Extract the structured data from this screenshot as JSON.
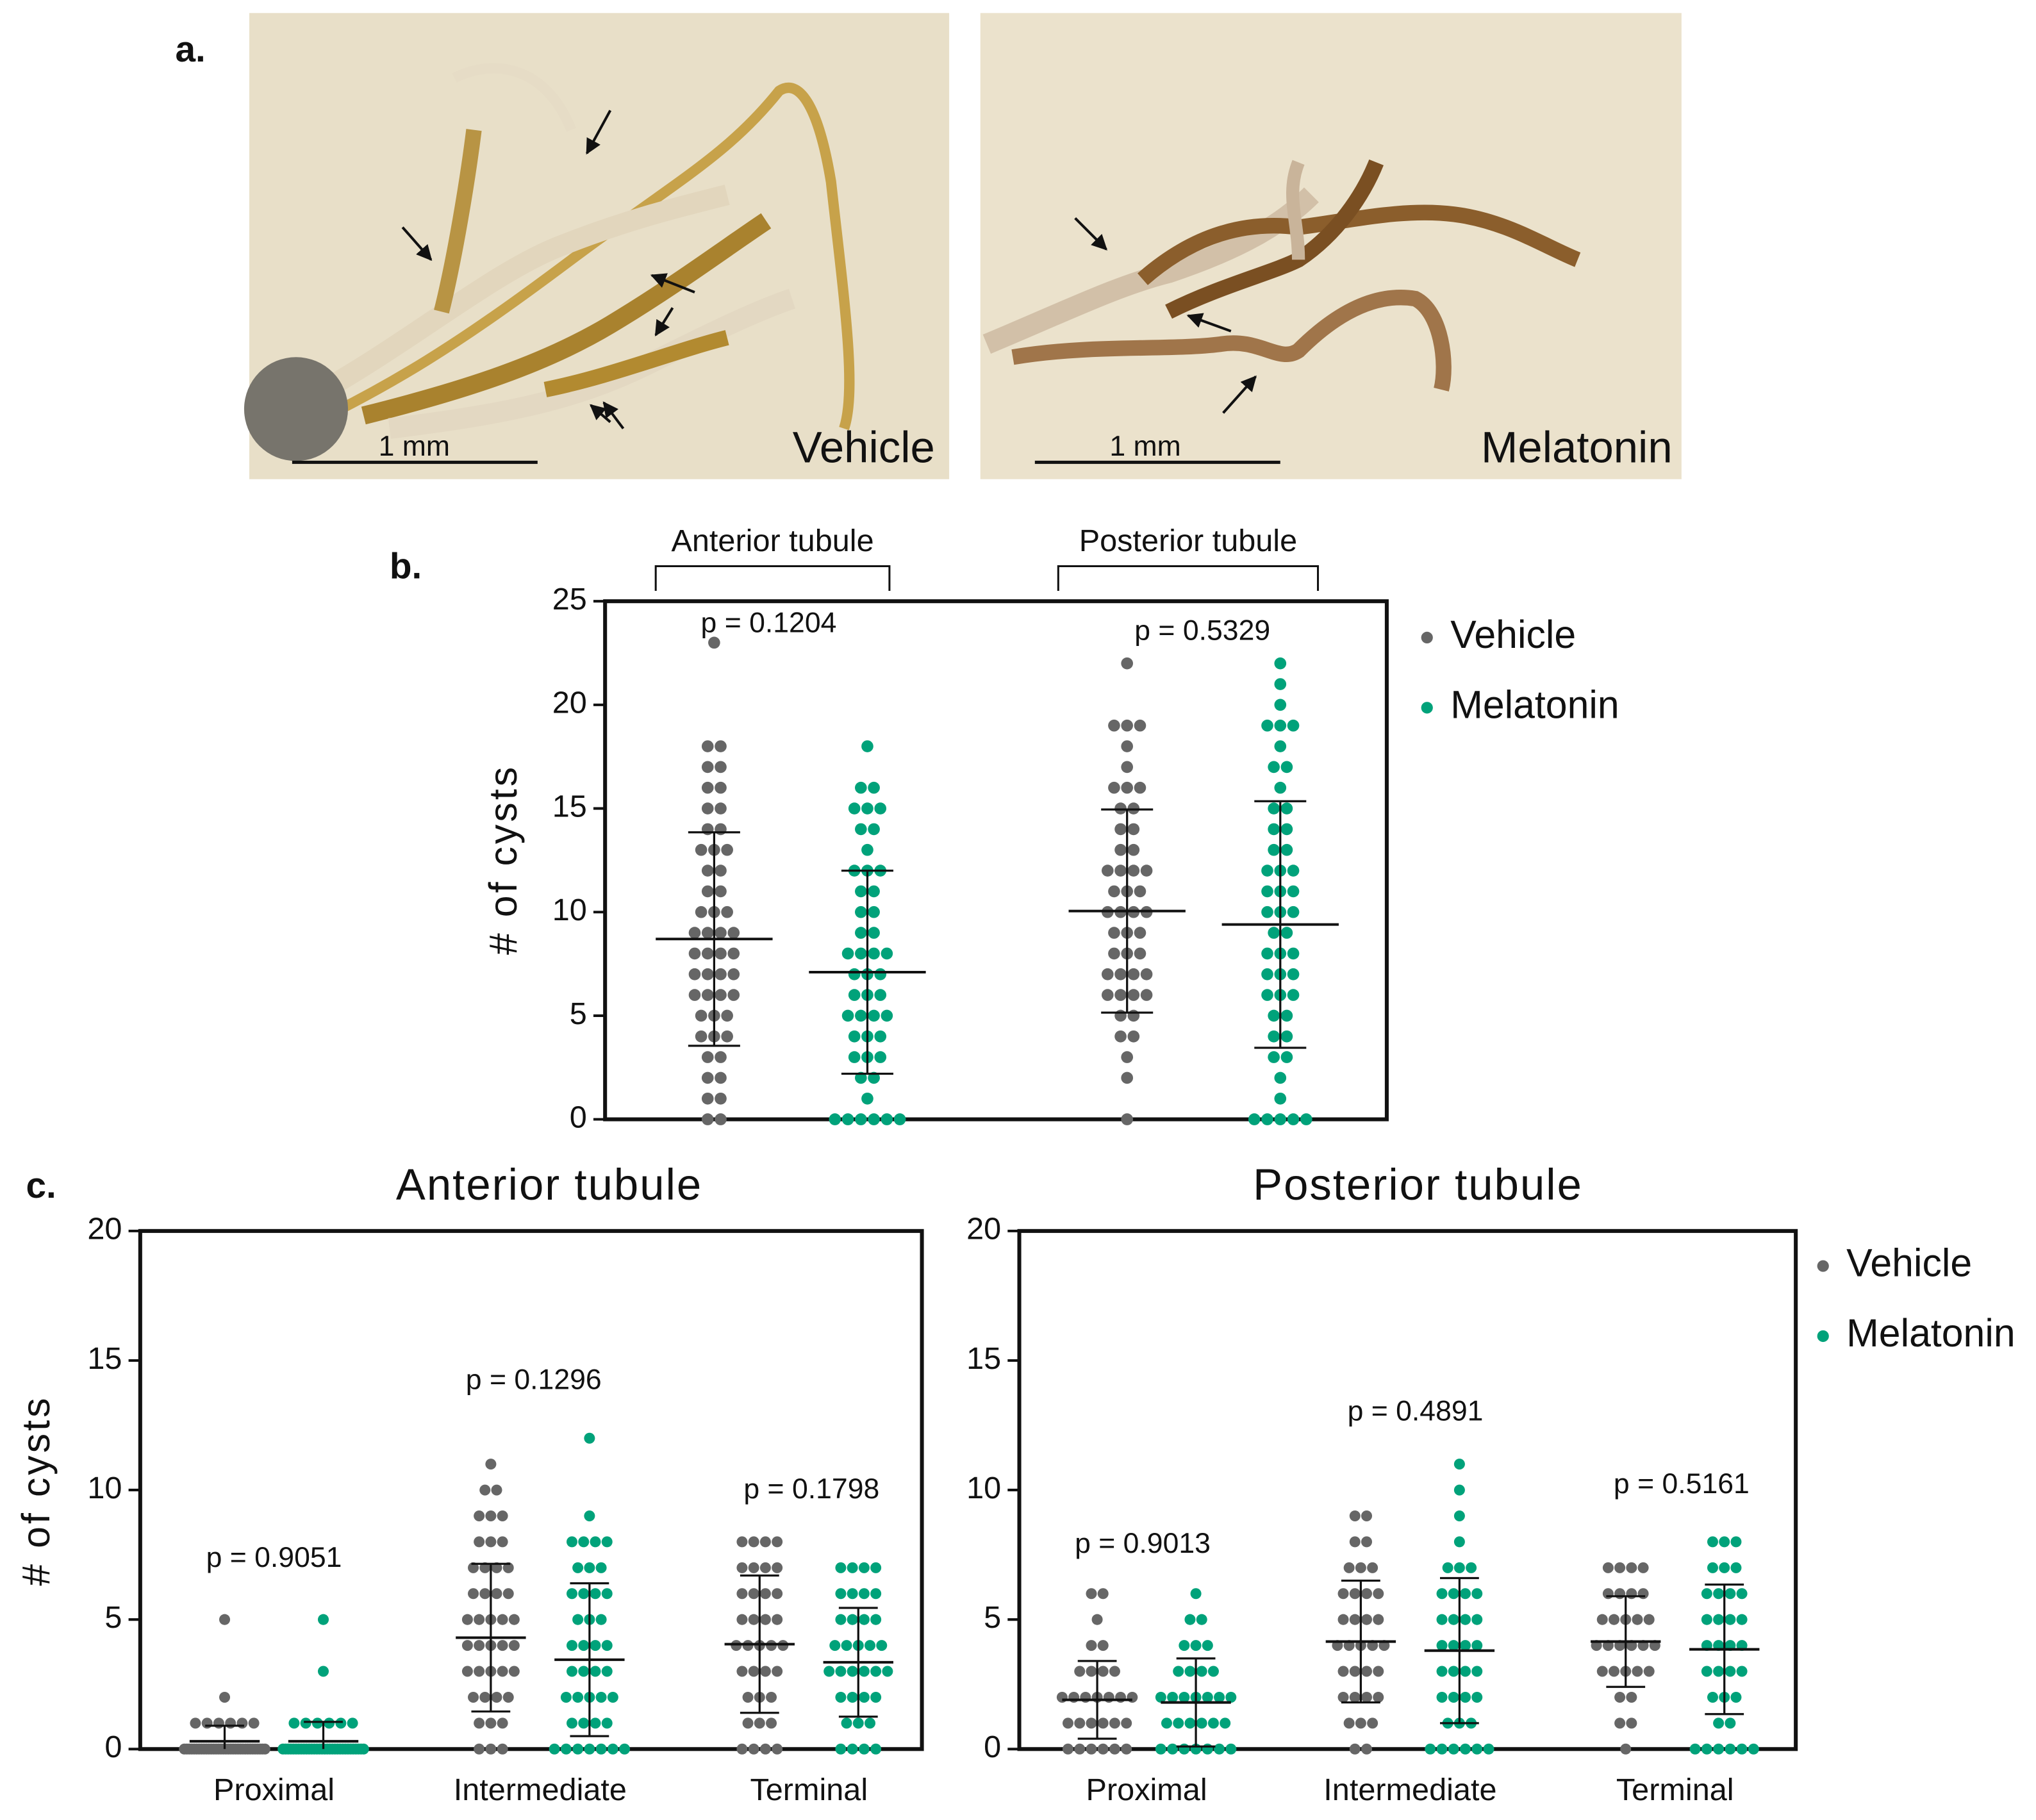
{
  "panel_labels": [
    "a.",
    "b.",
    "c."
  ],
  "images": [
    {
      "label": "Vehicle",
      "scale_bar": "1 mm"
    },
    {
      "label": "Melatonin",
      "scale_bar": "1 mm"
    }
  ],
  "chart_data": [
    {
      "type": "dot",
      "y_label": "# of cysts",
      "categories": [
        "Anterior tubule",
        "Posterior tubule"
      ],
      "annotations": [
        "p = 0.1204",
        "p = 0.5329"
      ],
      "ylim": [
        0,
        25
      ],
      "yticks": [
        0,
        5,
        10,
        15,
        20,
        25
      ],
      "legend": true,
      "series": [
        {
          "name": "Vehicle",
          "color": "#666666",
          "mean": [
            8.7,
            10.05
          ],
          "sd": [
            5.15,
            4.9
          ],
          "values": [
            [
              23,
              18,
              18,
              17,
              17,
              16,
              16,
              15,
              15,
              14,
              14,
              13,
              13,
              13,
              12,
              12,
              11,
              11,
              10,
              10,
              10,
              9,
              9,
              9,
              9,
              8,
              8,
              8,
              8,
              7,
              7,
              7,
              7,
              6,
              6,
              6,
              6,
              5,
              5,
              5,
              4,
              4,
              4,
              3,
              3,
              2,
              2,
              1,
              1,
              0,
              0
            ],
            [
              22,
              19,
              19,
              19,
              18,
              17,
              16,
              16,
              16,
              15,
              15,
              14,
              14,
              13,
              13,
              12,
              12,
              12,
              12,
              11,
              11,
              11,
              10,
              10,
              10,
              10,
              9,
              9,
              9,
              8,
              8,
              8,
              7,
              7,
              7,
              7,
              6,
              6,
              6,
              6,
              5,
              5,
              4,
              4,
              3,
              2,
              0
            ]
          ]
        },
        {
          "name": "Melatonin",
          "color": "#00a27a",
          "mean": [
            7.1,
            9.4
          ],
          "sd": [
            4.9,
            5.95
          ],
          "values": [
            [
              18,
              16,
              16,
              15,
              15,
              15,
              14,
              14,
              13,
              12,
              12,
              12,
              11,
              11,
              10,
              10,
              9,
              9,
              8,
              8,
              8,
              8,
              7,
              7,
              7,
              6,
              6,
              6,
              5,
              5,
              5,
              5,
              4,
              4,
              4,
              3,
              3,
              3,
              2,
              2,
              1,
              0,
              0,
              0,
              0,
              0,
              0
            ],
            [
              22,
              21,
              20,
              19,
              19,
              19,
              18,
              17,
              17,
              16,
              15,
              15,
              14,
              14,
              13,
              13,
              12,
              12,
              12,
              11,
              11,
              11,
              10,
              10,
              10,
              9,
              9,
              8,
              8,
              8,
              7,
              7,
              7,
              6,
              6,
              6,
              5,
              5,
              4,
              4,
              3,
              3,
              2,
              1,
              0,
              0,
              0,
              0,
              0
            ]
          ]
        }
      ]
    },
    {
      "type": "dot",
      "title": "Anterior tubule",
      "y_label": "# of cysts",
      "categories": [
        "Proximal",
        "Intermediate",
        "Terminal"
      ],
      "annotations": [
        "p = 0.9051",
        "p = 0.1296",
        "p = 0.1798"
      ],
      "ylim": [
        0,
        20
      ],
      "yticks": [
        0,
        5,
        10,
        15,
        20
      ],
      "legend": false,
      "series": [
        {
          "name": "Vehicle",
          "color": "#666666",
          "mean": [
            0.3,
            4.3,
            4.05
          ],
          "sd": [
            0.6,
            2.85,
            2.65
          ],
          "values": [
            [
              5,
              2,
              1,
              1,
              1,
              1,
              1,
              1,
              0,
              0,
              0,
              0,
              0,
              0,
              0,
              0,
              0,
              0,
              0,
              0,
              0,
              0,
              0,
              0,
              0,
              0,
              0,
              0,
              0,
              0,
              0,
              0,
              0,
              0,
              0,
              0,
              0,
              0,
              0,
              0,
              0,
              0
            ],
            [
              11,
              10,
              10,
              9,
              9,
              9,
              8,
              8,
              8,
              7,
              7,
              7,
              7,
              6,
              6,
              6,
              6,
              5,
              5,
              5,
              5,
              5,
              4,
              4,
              4,
              4,
              4,
              3,
              3,
              3,
              3,
              3,
              2,
              2,
              2,
              2,
              1,
              1,
              1,
              0,
              0,
              0
            ],
            [
              8,
              8,
              8,
              8,
              7,
              7,
              7,
              7,
              6,
              6,
              6,
              6,
              5,
              5,
              5,
              5,
              4,
              4,
              4,
              4,
              4,
              3,
              3,
              3,
              3,
              2,
              2,
              2,
              1,
              1,
              1,
              0,
              0,
              0,
              0
            ]
          ]
        },
        {
          "name": "Melatonin",
          "color": "#00a27a",
          "mean": [
            0.3,
            3.45,
            3.35
          ],
          "sd": [
            0.75,
            2.95,
            2.1
          ],
          "values": [
            [
              5,
              3,
              1,
              1,
              1,
              1,
              1,
              1,
              0,
              0,
              0,
              0,
              0,
              0,
              0,
              0,
              0,
              0,
              0,
              0,
              0,
              0,
              0,
              0,
              0,
              0,
              0,
              0,
              0,
              0,
              0,
              0,
              0,
              0,
              0,
              0,
              0,
              0,
              0,
              0
            ],
            [
              12,
              9,
              8,
              8,
              8,
              8,
              7,
              7,
              7,
              6,
              6,
              6,
              6,
              5,
              5,
              5,
              4,
              4,
              4,
              4,
              3,
              3,
              3,
              3,
              2,
              2,
              2,
              2,
              2,
              1,
              1,
              1,
              1,
              0,
              0,
              0,
              0,
              0,
              0,
              0
            ],
            [
              7,
              7,
              7,
              7,
              6,
              6,
              6,
              6,
              5,
              5,
              5,
              5,
              4,
              4,
              4,
              4,
              4,
              3,
              3,
              3,
              3,
              3,
              3,
              2,
              2,
              2,
              2,
              1,
              1,
              1,
              0,
              0,
              0,
              0
            ]
          ]
        }
      ]
    },
    {
      "type": "dot",
      "title": "Posterior tubule",
      "categories": [
        "Proximal",
        "Intermediate",
        "Terminal"
      ],
      "annotations": [
        "p = 0.9013",
        "p = 0.4891",
        "p = 0.5161"
      ],
      "ylim": [
        0,
        20
      ],
      "yticks": [
        0,
        5,
        10,
        15,
        20
      ],
      "legend": true,
      "series": [
        {
          "name": "Vehicle",
          "color": "#666666",
          "mean": [
            1.9,
            4.15,
            4.15
          ],
          "sd": [
            1.5,
            2.35,
            1.75
          ],
          "values": [
            [
              6,
              6,
              5,
              4,
              4,
              3,
              3,
              3,
              3,
              2,
              2,
              2,
              2,
              2,
              2,
              2,
              1,
              1,
              1,
              1,
              1,
              1,
              0,
              0,
              0,
              0,
              0,
              0
            ],
            [
              9,
              9,
              8,
              8,
              7,
              7,
              7,
              6,
              6,
              6,
              6,
              5,
              5,
              5,
              5,
              4,
              4,
              4,
              4,
              4,
              3,
              3,
              3,
              3,
              2,
              2,
              2,
              2,
              1,
              1,
              1,
              0,
              0
            ],
            [
              7,
              7,
              7,
              7,
              6,
              6,
              6,
              6,
              5,
              5,
              5,
              5,
              5,
              4,
              4,
              4,
              4,
              4,
              4,
              3,
              3,
              3,
              3,
              3,
              2,
              2,
              1,
              1,
              0
            ]
          ]
        },
        {
          "name": "Melatonin",
          "color": "#00a27a",
          "mean": [
            1.8,
            3.8,
            3.85
          ],
          "sd": [
            1.7,
            2.8,
            2.5
          ],
          "values": [
            [
              6,
              5,
              5,
              4,
              4,
              4,
              3,
              3,
              3,
              3,
              2,
              2,
              2,
              2,
              2,
              2,
              2,
              1,
              1,
              1,
              1,
              1,
              1,
              0,
              0,
              0,
              0,
              0,
              0,
              0
            ],
            [
              11,
              10,
              9,
              8,
              7,
              7,
              7,
              6,
              6,
              6,
              6,
              5,
              5,
              5,
              5,
              4,
              4,
              4,
              4,
              3,
              3,
              3,
              3,
              2,
              2,
              2,
              2,
              1,
              1,
              1,
              0,
              0,
              0,
              0,
              0,
              0
            ],
            [
              8,
              8,
              8,
              7,
              7,
              7,
              6,
              6,
              6,
              6,
              5,
              5,
              5,
              5,
              4,
              4,
              4,
              4,
              3,
              3,
              3,
              3,
              2,
              2,
              2,
              1,
              1,
              0,
              0,
              0,
              0,
              0,
              0
            ]
          ]
        }
      ]
    }
  ]
}
